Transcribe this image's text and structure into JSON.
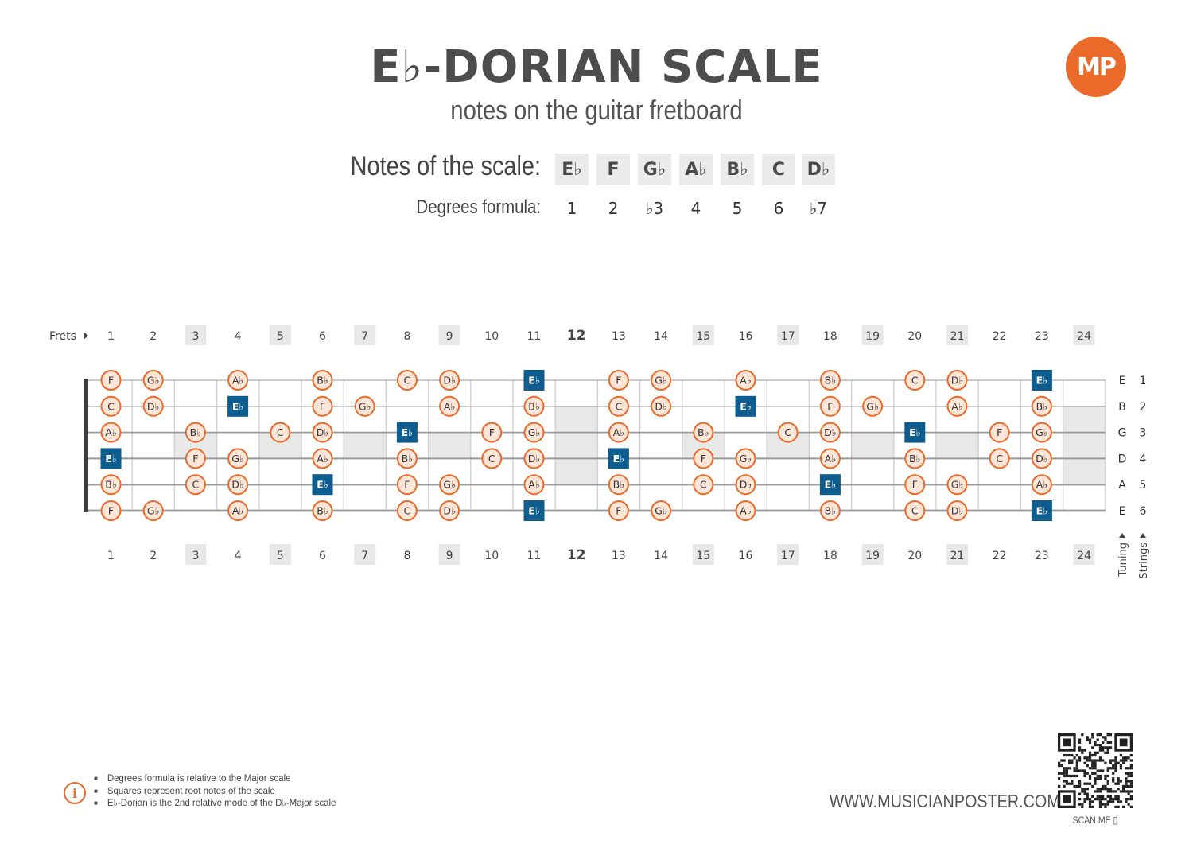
{
  "header": {
    "title": "E♭-DORIAN SCALE",
    "subtitle": "notes on the guitar fretboard",
    "logo_text": "MP"
  },
  "scale": {
    "notes_label": "Notes of the scale:",
    "degrees_label": "Degrees formula:",
    "notes": [
      "E♭",
      "F",
      "G♭",
      "A♭",
      "B♭",
      "C",
      "D♭"
    ],
    "degrees": [
      "1",
      "2",
      "♭3",
      "4",
      "5",
      "6",
      "♭7"
    ]
  },
  "fretboard": {
    "frets_label": "Frets",
    "frets": [
      "1",
      "2",
      "3",
      "4",
      "5",
      "6",
      "7",
      "8",
      "9",
      "10",
      "11",
      "12",
      "13",
      "14",
      "15",
      "16",
      "17",
      "18",
      "19",
      "20",
      "21",
      "22",
      "23",
      "24"
    ],
    "marker_frets": [
      3,
      5,
      7,
      9,
      12,
      15,
      17,
      19,
      21,
      24
    ],
    "tuning_label": "Tuning",
    "strings_label": "Strings",
    "strings": [
      {
        "number": "1",
        "tuning": "E",
        "notes": [
          "F",
          "Gb",
          "",
          "Ab",
          "",
          "Bb",
          "",
          "C",
          "Db",
          "",
          "Eb",
          "",
          "F",
          "Gb",
          "",
          "Ab",
          "",
          "Bb",
          "",
          "C",
          "Db",
          "",
          "Eb",
          ""
        ],
        "roots": [
          11,
          23
        ]
      },
      {
        "number": "2",
        "tuning": "B",
        "notes": [
          "C",
          "Db",
          "",
          "Eb",
          "",
          "F",
          "Gb",
          "",
          "Ab",
          "",
          "Bb",
          "",
          "C",
          "Db",
          "",
          "Eb",
          "",
          "F",
          "Gb",
          "",
          "Ab",
          "",
          "Bb",
          ""
        ],
        "roots": [
          4,
          16
        ]
      },
      {
        "number": "3",
        "tuning": "G",
        "notes": [
          "Ab",
          "",
          "Bb",
          "",
          "C",
          "Db",
          "",
          "Eb",
          "",
          "F",
          "Gb",
          "",
          "Ab",
          "",
          "Bb",
          "",
          "C",
          "Db",
          "",
          "Eb",
          "",
          "F",
          "Gb",
          ""
        ],
        "roots": [
          8,
          20
        ]
      },
      {
        "number": "4",
        "tuning": "D",
        "notes": [
          "Eb",
          "",
          "F",
          "Gb",
          "",
          "Ab",
          "",
          "Bb",
          "",
          "C",
          "Db",
          "",
          "Eb",
          "",
          "F",
          "Gb",
          "",
          "Ab",
          "",
          "Bb",
          "",
          "C",
          "Db",
          ""
        ],
        "roots": [
          1,
          13
        ]
      },
      {
        "number": "5",
        "tuning": "A",
        "notes": [
          "Bb",
          "",
          "C",
          "Db",
          "",
          "Eb",
          "",
          "F",
          "Gb",
          "",
          "Ab",
          "",
          "Bb",
          "",
          "C",
          "Db",
          "",
          "Eb",
          "",
          "F",
          "Gb",
          "",
          "Ab",
          ""
        ],
        "roots": [
          6,
          18
        ]
      },
      {
        "number": "6",
        "tuning": "E",
        "notes": [
          "F",
          "Gb",
          "",
          "Ab",
          "",
          "Bb",
          "",
          "C",
          "Db",
          "",
          "Eb",
          "",
          "F",
          "Gb",
          "",
          "Ab",
          "",
          "Bb",
          "",
          "C",
          "Db",
          "",
          "Eb",
          ""
        ],
        "roots": [
          11,
          23
        ]
      }
    ]
  },
  "footer": {
    "notes": [
      "Degrees formula is relative to the Major scale",
      "Squares represent root notes of the scale",
      "E♭-Dorian is the 2nd relative mode of the D♭-Major scale"
    ],
    "website": "WWW.MUSICIANPOSTER.COM",
    "scan_label": "SCAN ME"
  },
  "colors": {
    "accent": "#ea6a2a",
    "note_fill": "#fde6d8",
    "root": "#0f5c8f",
    "marker": "#e8e8e8",
    "string": "#999999"
  }
}
